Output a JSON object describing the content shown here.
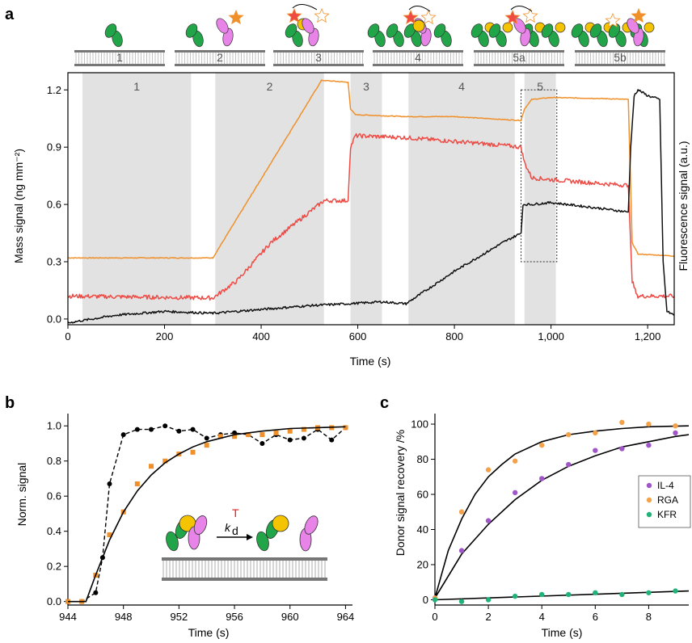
{
  "panels": {
    "a": "a",
    "b": "b",
    "c": "c"
  },
  "colors": {
    "orange": "#f0902a",
    "red": "#ee4b45",
    "black": "#111111",
    "green": "#22a548",
    "pink": "#e884e8",
    "yellow": "#f5c400",
    "purple": "#a056c8",
    "teal": "#1fb37a",
    "lightorange": "#f4a24a",
    "shade": "#e2e2e2"
  },
  "icons": [
    "membrane-icon",
    "green-receptor-icon",
    "pink-receptor-icon",
    "yellow-ligand-icon",
    "star-fluorophore-icon"
  ],
  "scheme": {
    "labels": [
      "1",
      "2",
      "3",
      "4",
      "5a",
      "5b"
    ]
  },
  "chart_data": [
    {
      "id": "a",
      "type": "line",
      "xlabel": "Time (s)",
      "ylabel": "Mass signal (ng mm⁻²)",
      "y2label": "Fluorescence signal (a.u.)",
      "xlim": [
        0,
        1255
      ],
      "ylim": [
        -0.03,
        1.29
      ],
      "xticks": [
        0,
        200,
        400,
        600,
        800,
        1000,
        1200
      ],
      "xtick_labels": [
        "0",
        "200",
        "400",
        "600",
        "800",
        "1,000",
        "1,200"
      ],
      "yticks": [
        0.0,
        0.3,
        0.6,
        0.9,
        1.2
      ],
      "ytick_labels": [
        "0.0",
        "0.3",
        "0.6",
        "0.9",
        "1.2"
      ],
      "regions": [
        {
          "label": "1",
          "x": [
            30,
            255
          ]
        },
        {
          "label": "2",
          "x": [
            305,
            530
          ]
        },
        {
          "label": "3",
          "x": [
            585,
            650
          ]
        },
        {
          "label": "4",
          "x": [
            705,
            925
          ]
        },
        {
          "label": "5",
          "x": [
            945,
            1010
          ]
        }
      ],
      "series": [
        {
          "color": "orange",
          "points": [
            [
              0,
              0.32
            ],
            [
              300,
              0.32
            ],
            [
              525,
              1.25
            ],
            [
              580,
              1.24
            ],
            [
              585,
              1.1
            ],
            [
              595,
              1.07
            ],
            [
              700,
              1.06
            ],
            [
              800,
              1.06
            ],
            [
              900,
              1.045
            ],
            [
              938,
              1.04
            ],
            [
              945,
              1.1
            ],
            [
              960,
              1.15
            ],
            [
              1000,
              1.16
            ],
            [
              1100,
              1.155
            ],
            [
              1160,
              1.15
            ],
            [
              1168,
              0.4
            ],
            [
              1180,
              0.34
            ],
            [
              1255,
              0.33
            ]
          ]
        },
        {
          "color": "red",
          "points": [
            [
              0,
              0.12
            ],
            [
              300,
              0.11
            ],
            [
              350,
              0.2
            ],
            [
              420,
              0.4
            ],
            [
              500,
              0.56
            ],
            [
              530,
              0.62
            ],
            [
              580,
              0.62
            ],
            [
              585,
              0.9
            ],
            [
              595,
              0.96
            ],
            [
              700,
              0.95
            ],
            [
              800,
              0.93
            ],
            [
              900,
              0.91
            ],
            [
              938,
              0.9
            ],
            [
              945,
              0.82
            ],
            [
              960,
              0.74
            ],
            [
              1000,
              0.73
            ],
            [
              1100,
              0.71
            ],
            [
              1160,
              0.7
            ],
            [
              1168,
              0.2
            ],
            [
              1178,
              0.12
            ],
            [
              1255,
              0.12
            ]
          ]
        },
        {
          "color": "black",
          "points": [
            [
              0,
              -0.02
            ],
            [
              100,
              0.02
            ],
            [
              200,
              0.04
            ],
            [
              300,
              0.03
            ],
            [
              400,
              0.05
            ],
            [
              500,
              0.07
            ],
            [
              580,
              0.08
            ],
            [
              650,
              0.09
            ],
            [
              700,
              0.08
            ],
            [
              800,
              0.25
            ],
            [
              900,
              0.4
            ],
            [
              938,
              0.45
            ],
            [
              942,
              0.6
            ],
            [
              960,
              0.6
            ],
            [
              1000,
              0.61
            ],
            [
              1100,
              0.58
            ],
            [
              1160,
              0.56
            ],
            [
              1165,
              0.9
            ],
            [
              1172,
              1.17
            ],
            [
              1180,
              1.2
            ],
            [
              1200,
              1.17
            ],
            [
              1225,
              1.15
            ],
            [
              1232,
              0.3
            ],
            [
              1240,
              0.04
            ],
            [
              1255,
              0.02
            ]
          ]
        }
      ]
    },
    {
      "id": "b",
      "type": "line",
      "xlabel": "Time (s)",
      "ylabel": "Norm. signal",
      "xlim": [
        944,
        964.5
      ],
      "ylim": [
        -0.02,
        1.07
      ],
      "xticks": [
        944,
        948,
        952,
        956,
        960,
        964
      ],
      "xtick_labels": [
        "944",
        "948",
        "952",
        "956",
        "960",
        "964"
      ],
      "yticks": [
        0.0,
        0.2,
        0.4,
        0.6,
        0.8,
        1.0
      ],
      "ytick_labels": [
        "0.0",
        "0.2",
        "0.4",
        "0.6",
        "0.8",
        "1.0"
      ],
      "kinetic_label": "k",
      "kinetic_subscript": "d",
      "kinetic_superscript": "T",
      "series": [
        {
          "color": "black",
          "style": "dashed-dots",
          "points": [
            [
              944,
              0.0
            ],
            [
              945,
              0.0
            ],
            [
              946,
              0.05
            ],
            [
              946.5,
              0.25
            ],
            [
              947,
              0.67
            ],
            [
              948,
              0.95
            ],
            [
              949,
              0.98
            ],
            [
              950,
              0.98
            ],
            [
              951,
              1.0
            ],
            [
              952,
              0.97
            ],
            [
              953,
              0.98
            ],
            [
              954,
              0.93
            ],
            [
              955,
              0.95
            ],
            [
              956,
              0.96
            ],
            [
              957,
              0.95
            ],
            [
              958,
              0.9
            ],
            [
              959,
              0.95
            ],
            [
              960,
              0.92
            ],
            [
              961,
              0.93
            ],
            [
              962,
              0.98
            ],
            [
              963,
              0.92
            ],
            [
              964,
              0.99
            ]
          ]
        },
        {
          "color": "orange",
          "style": "squares",
          "points": [
            [
              944,
              0.0
            ],
            [
              945,
              0.0
            ],
            [
              946,
              0.15
            ],
            [
              947,
              0.38
            ],
            [
              948,
              0.51
            ],
            [
              949,
              0.67
            ],
            [
              950,
              0.77
            ],
            [
              951,
              0.8
            ],
            [
              952,
              0.84
            ],
            [
              953,
              0.85
            ],
            [
              954,
              0.89
            ],
            [
              955,
              0.94
            ],
            [
              956,
              0.94
            ],
            [
              957,
              0.95
            ],
            [
              958,
              0.95
            ],
            [
              959,
              0.96
            ],
            [
              960,
              0.97
            ],
            [
              961,
              0.98
            ],
            [
              962,
              0.99
            ],
            [
              963,
              0.99
            ],
            [
              964,
              0.99
            ]
          ]
        },
        {
          "color": "black",
          "style": "fit",
          "points": [
            [
              944,
              0
            ],
            [
              945.3,
              0
            ],
            [
              946,
              0.15
            ],
            [
              947,
              0.35
            ],
            [
              948,
              0.51
            ],
            [
              949,
              0.63
            ],
            [
              950,
              0.72
            ],
            [
              951,
              0.79
            ],
            [
              952,
              0.84
            ],
            [
              953,
              0.88
            ],
            [
              954,
              0.91
            ],
            [
              956,
              0.95
            ],
            [
              958,
              0.97
            ],
            [
              960,
              0.985
            ],
            [
              962,
              0.99
            ],
            [
              964,
              0.995
            ]
          ]
        }
      ]
    },
    {
      "id": "c",
      "type": "scatter",
      "xlabel": "Time (s)",
      "ylabel": "Donor signal recovery /%",
      "xlim": [
        0,
        9.5
      ],
      "ylim": [
        -3,
        106
      ],
      "xticks": [
        0,
        2,
        4,
        6,
        8
      ],
      "xtick_labels": [
        "0",
        "2",
        "4",
        "6",
        "8"
      ],
      "yticks": [
        0,
        20,
        40,
        60,
        80,
        100
      ],
      "ytick_labels": [
        "0",
        "20",
        "40",
        "60",
        "80",
        "100"
      ],
      "legend_position": "right",
      "series": [
        {
          "name": "IL-4",
          "color": "purple",
          "points": [
            [
              0,
              1
            ],
            [
              1,
              28
            ],
            [
              2,
              45
            ],
            [
              3,
              61
            ],
            [
              4,
              69
            ],
            [
              5,
              77
            ],
            [
              6,
              85
            ],
            [
              7,
              86
            ],
            [
              8,
              88
            ],
            [
              9,
              95
            ]
          ]
        },
        {
          "name": "RGA",
          "color": "lightorange",
          "points": [
            [
              0,
              1
            ],
            [
              1,
              50
            ],
            [
              2,
              74
            ],
            [
              3,
              79
            ],
            [
              4,
              88
            ],
            [
              5,
              94
            ],
            [
              6,
              95
            ],
            [
              7,
              101
            ],
            [
              8,
              100
            ],
            [
              9,
              99
            ]
          ]
        },
        {
          "name": "KFR",
          "color": "teal",
          "points": [
            [
              0,
              0
            ],
            [
              1,
              -1
            ],
            [
              2,
              0
            ],
            [
              3,
              2
            ],
            [
              4,
              3
            ],
            [
              5,
              3
            ],
            [
              6,
              4
            ],
            [
              7,
              3
            ],
            [
              8,
              4
            ],
            [
              9,
              5
            ]
          ]
        }
      ],
      "fits": [
        {
          "color": "black",
          "points": [
            [
              0,
              1
            ],
            [
              0.5,
              28
            ],
            [
              1,
              46
            ],
            [
              1.5,
              60
            ],
            [
              2,
              70
            ],
            [
              2.5,
              77
            ],
            [
              3,
              83
            ],
            [
              4,
              90
            ],
            [
              5,
              94
            ],
            [
              6,
              96
            ],
            [
              7,
              97.5
            ],
            [
              8,
              98.5
            ],
            [
              9.5,
              99
            ]
          ]
        },
        {
          "color": "black",
          "points": [
            [
              0,
              1
            ],
            [
              1,
              26
            ],
            [
              2,
              43
            ],
            [
              3,
              57
            ],
            [
              4,
              68
            ],
            [
              5,
              76
            ],
            [
              6,
              82
            ],
            [
              7,
              87
            ],
            [
              8,
              90
            ],
            [
              9,
              93
            ],
            [
              9.5,
              94
            ]
          ]
        },
        {
          "color": "black",
          "points": [
            [
              0,
              0
            ],
            [
              9.5,
              5
            ]
          ]
        }
      ]
    }
  ]
}
